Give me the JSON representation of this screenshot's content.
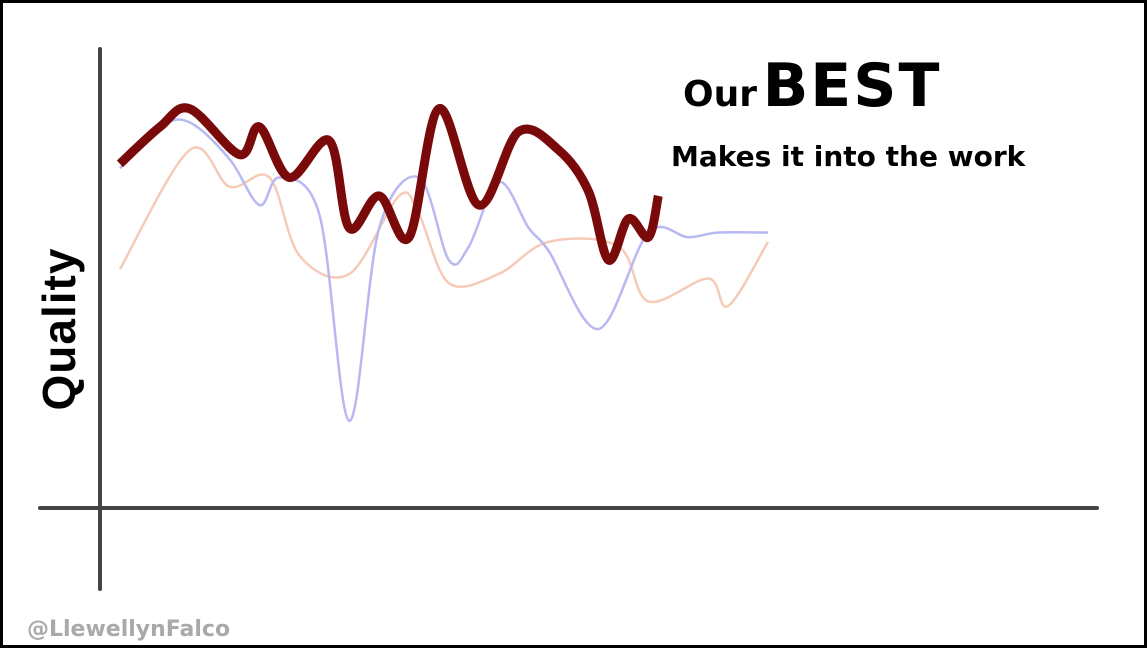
{
  "slide": {
    "headline_prefix": "Our",
    "headline_emphasis": "BEST",
    "subheading": "Makes it into the work",
    "y_axis_label": "Quality",
    "credit": "@LlewellynFalco"
  },
  "colors": {
    "best_line": "#7a0a0a",
    "blue_line": "#b8b8f2",
    "orange_line": "#f5cbb8",
    "axis": "#444444",
    "credit": "#a9a9a9"
  },
  "chart_data": {
    "type": "line",
    "title": "",
    "xlabel": "",
    "ylabel": "Quality",
    "grid": false,
    "ylim": [
      0,
      100
    ],
    "xlim": [
      0,
      100
    ],
    "series": [
      {
        "key": "orange",
        "color": "#f5cbb8",
        "points": [
          [
            2,
            52
          ],
          [
            9,
            78
          ],
          [
            13,
            70
          ],
          [
            17,
            72
          ],
          [
            20,
            55
          ],
          [
            25,
            51
          ],
          [
            30,
            68
          ],
          [
            32,
            64
          ],
          [
            35,
            49
          ],
          [
            40,
            51
          ],
          [
            45,
            58
          ],
          [
            52,
            57
          ],
          [
            55,
            45
          ],
          [
            61,
            50
          ],
          [
            63,
            44
          ],
          [
            67,
            58
          ]
        ]
      },
      {
        "key": "blue",
        "color": "#b8b8f2",
        "points": [
          [
            2,
            74
          ],
          [
            6,
            83
          ],
          [
            9,
            84
          ],
          [
            13,
            76
          ],
          [
            16,
            66
          ],
          [
            18,
            72
          ],
          [
            22,
            64
          ],
          [
            25,
            19
          ],
          [
            28,
            61
          ],
          [
            32,
            72
          ],
          [
            35,
            54
          ],
          [
            37,
            57
          ],
          [
            40,
            71
          ],
          [
            43,
            61
          ],
          [
            45,
            56
          ],
          [
            50,
            39
          ],
          [
            55,
            60
          ],
          [
            59,
            59
          ],
          [
            62,
            60
          ],
          [
            67,
            60
          ]
        ]
      },
      {
        "key": "best",
        "color": "#7a0a0a",
        "points": [
          [
            2,
            75
          ],
          [
            6,
            83
          ],
          [
            9,
            87
          ],
          [
            14,
            77
          ],
          [
            16,
            83
          ],
          [
            19,
            72
          ],
          [
            23,
            80
          ],
          [
            25,
            61
          ],
          [
            28,
            68
          ],
          [
            31,
            59
          ],
          [
            34,
            87
          ],
          [
            38,
            66
          ],
          [
            42,
            82
          ],
          [
            46,
            78
          ],
          [
            49,
            69
          ],
          [
            51,
            54
          ],
          [
            53,
            63
          ],
          [
            55,
            59
          ],
          [
            56,
            68
          ]
        ]
      }
    ]
  }
}
